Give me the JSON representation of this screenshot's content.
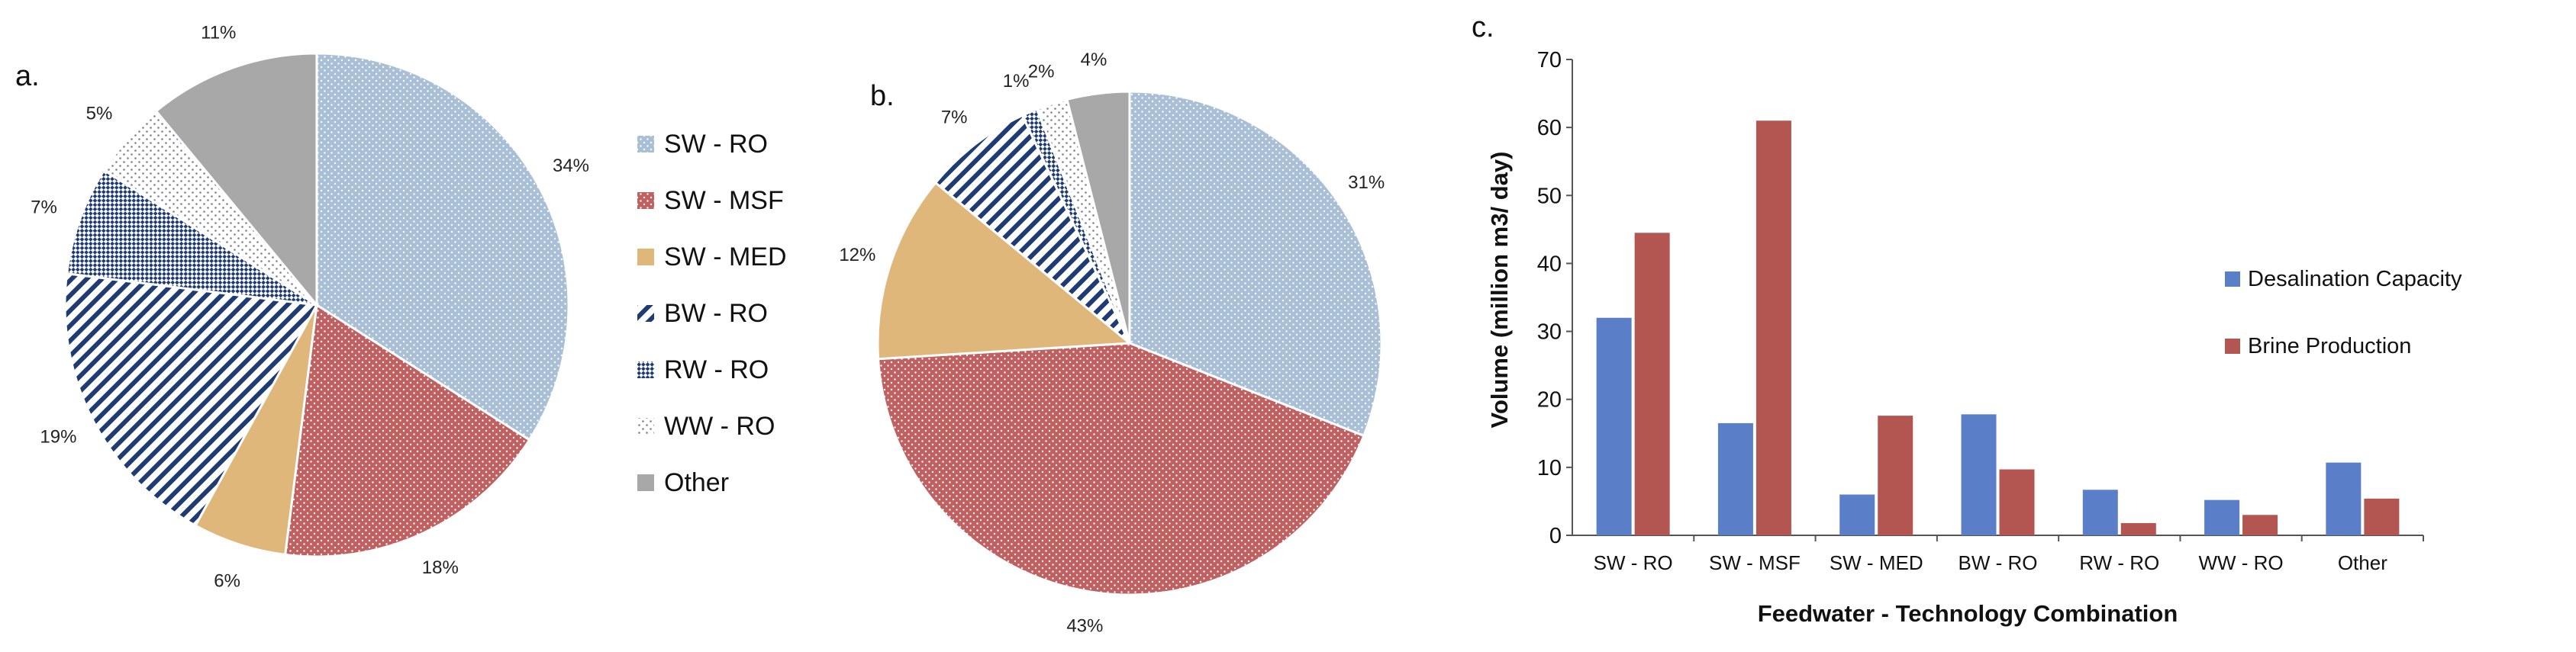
{
  "colors": {
    "sw_ro": "#a9bfd6",
    "sw_msf": "#c06060",
    "sw_med": "#dfb77a",
    "bw_ro": "#1f3b73",
    "rw_ro": "#1f3b73",
    "ww_ro": "#7d8288",
    "other": "#a8a8a8",
    "desal": "#5b7ec9",
    "brine": "#b35651"
  },
  "legend": [
    {
      "key": "sw_ro",
      "label": "SW - RO",
      "pattern": "dots"
    },
    {
      "key": "sw_msf",
      "label": "SW - MSF",
      "pattern": "dots"
    },
    {
      "key": "sw_med",
      "label": "SW - MED",
      "pattern": "solid"
    },
    {
      "key": "bw_ro",
      "label": "BW - RO",
      "pattern": "stripes"
    },
    {
      "key": "rw_ro",
      "label": "RW - RO",
      "pattern": "check"
    },
    {
      "key": "ww_ro",
      "label": "WW - RO",
      "pattern": "sparse"
    },
    {
      "key": "other",
      "label": "Other",
      "pattern": "solid"
    }
  ],
  "chart_data": [
    {
      "panel": "a.",
      "type": "pie",
      "slices": [
        {
          "key": "sw_ro",
          "label": "SW - RO",
          "value": 34,
          "text": "34%"
        },
        {
          "key": "sw_msf",
          "label": "SW - MSF",
          "value": 18,
          "text": "18%"
        },
        {
          "key": "sw_med",
          "label": "SW - MED",
          "value": 6,
          "text": "6%"
        },
        {
          "key": "bw_ro",
          "label": "BW - RO",
          "value": 19,
          "text": "19%"
        },
        {
          "key": "rw_ro",
          "label": "RW - RO",
          "value": 7,
          "text": "7%"
        },
        {
          "key": "ww_ro",
          "label": "WW - RO",
          "value": 5,
          "text": "5%"
        },
        {
          "key": "other",
          "label": "Other",
          "value": 11,
          "text": "11%"
        }
      ]
    },
    {
      "panel": "b.",
      "type": "pie",
      "slices": [
        {
          "key": "sw_ro",
          "label": "SW - RO",
          "value": 31,
          "text": "31%"
        },
        {
          "key": "sw_msf",
          "label": "SW - MSF",
          "value": 43,
          "text": "43%"
        },
        {
          "key": "sw_med",
          "label": "SW - MED",
          "value": 12,
          "text": "12%"
        },
        {
          "key": "bw_ro",
          "label": "BW - RO",
          "value": 7,
          "text": "7%"
        },
        {
          "key": "rw_ro",
          "label": "RW - RO",
          "value": 1,
          "text": "1%"
        },
        {
          "key": "ww_ro",
          "label": "WW - RO",
          "value": 2,
          "text": "2%"
        },
        {
          "key": "other",
          "label": "Other",
          "value": 4,
          "text": "4%"
        }
      ]
    },
    {
      "panel": "c.",
      "type": "bar",
      "categories": [
        "SW - RO",
        "SW - MSF",
        "SW - MED",
        "BW - RO",
        "RW - RO",
        "WW - RO",
        "Other"
      ],
      "series": [
        {
          "name": "Desalination Capacity",
          "color_key": "desal",
          "values": [
            32,
            16.5,
            6,
            17.8,
            6.7,
            5.2,
            10.7
          ]
        },
        {
          "name": "Brine Production",
          "color_key": "brine",
          "values": [
            44.5,
            61,
            17.6,
            9.7,
            1.8,
            3,
            5.4
          ]
        }
      ],
      "xlabel": "Feedwater - Technology Combination",
      "ylabel": "Volume (million m3/ day)",
      "ylim": [
        0,
        70
      ],
      "yticks": [
        0,
        10,
        20,
        30,
        40,
        50,
        60,
        70
      ],
      "legend_position": "right"
    }
  ]
}
